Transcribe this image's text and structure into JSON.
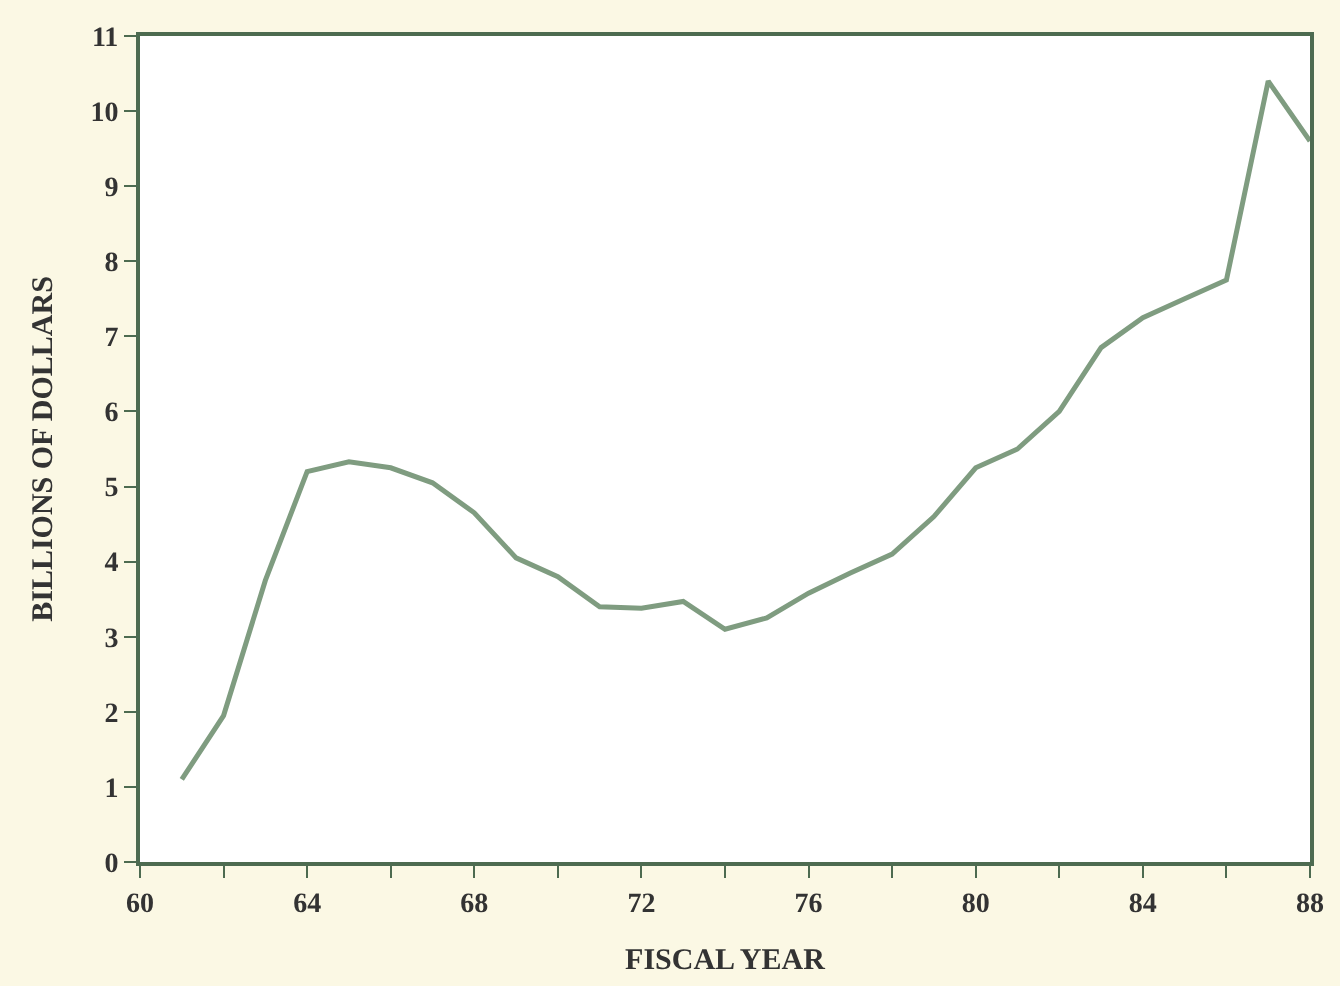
{
  "chart_data": {
    "type": "line",
    "xlabel": "FISCAL YEAR",
    "ylabel": "BILLIONS OF DOLLARS",
    "x": [
      61,
      62,
      63,
      64,
      65,
      66,
      67,
      68,
      69,
      70,
      71,
      72,
      73,
      74,
      75,
      76,
      77,
      78,
      79,
      80,
      81,
      82,
      83,
      84,
      85,
      86,
      87,
      88
    ],
    "series": [
      {
        "color": "#7f9c80",
        "values": [
          1.1,
          1.95,
          3.75,
          5.2,
          5.33,
          5.25,
          5.05,
          4.65,
          4.05,
          3.8,
          3.4,
          3.38,
          3.47,
          3.1,
          3.25,
          3.58,
          3.85,
          4.1,
          4.6,
          5.25,
          5.5,
          6.0,
          6.85,
          7.25,
          7.5,
          7.75,
          10.4,
          9.6
        ]
      }
    ],
    "xlim": [
      60,
      88
    ],
    "xticks": [
      60,
      {
        "value": 62,
        "label": null
      },
      64,
      {
        "value": 66,
        "label": null
      },
      68,
      {
        "value": 70,
        "label": null
      },
      72,
      {
        "value": 74,
        "label": null
      },
      76,
      {
        "value": 78,
        "label": null
      },
      80,
      {
        "value": 82,
        "label": null
      },
      84,
      {
        "value": 86,
        "label": null
      },
      88
    ],
    "ylim": [
      0,
      11
    ],
    "yticks": [
      0,
      1,
      2,
      3,
      4,
      5,
      6,
      7,
      8,
      9,
      10,
      11
    ],
    "marker": "none",
    "line_style": "solid"
  }
}
